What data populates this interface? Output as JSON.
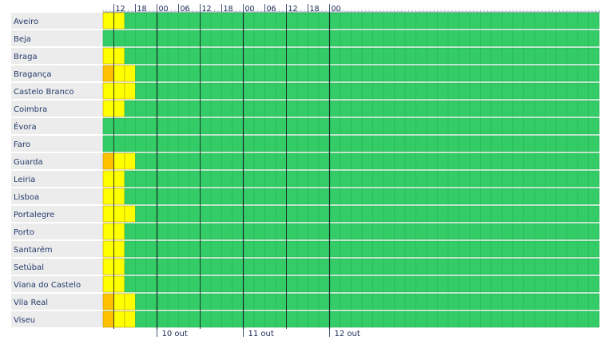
{
  "chart_data": {
    "type": "heatmap",
    "title": "",
    "xlabel": "",
    "ylabel": "",
    "slot_hours": 3,
    "start_time": "09",
    "hour_ticks": [
      "12",
      "18",
      "00",
      "06",
      "12",
      "18",
      "00",
      "06",
      "12",
      "18",
      "00"
    ],
    "day_labels": [
      "10 out",
      "11 out",
      "12 out"
    ],
    "level_colors": {
      "green": "#33cc66",
      "yellow": "#ffff00",
      "orange": "#ffc000"
    },
    "rows": [
      {
        "district": "Aveiro",
        "levels": [
          "yellow",
          "yellow",
          "green"
        ]
      },
      {
        "district": "Beja",
        "levels": [
          "green",
          "green",
          "green"
        ]
      },
      {
        "district": "Braga",
        "levels": [
          "yellow",
          "yellow",
          "green"
        ]
      },
      {
        "district": "Bragança",
        "levels": [
          "orange",
          "yellow",
          "yellow",
          "green"
        ]
      },
      {
        "district": "Castelo Branco",
        "levels": [
          "yellow",
          "yellow",
          "yellow",
          "green"
        ]
      },
      {
        "district": "Coimbra",
        "levels": [
          "yellow",
          "yellow",
          "green"
        ]
      },
      {
        "district": "Évora",
        "levels": [
          "green",
          "green",
          "green"
        ]
      },
      {
        "district": "Faro",
        "levels": [
          "green",
          "green",
          "green"
        ]
      },
      {
        "district": "Guarda",
        "levels": [
          "orange",
          "yellow",
          "yellow",
          "green"
        ]
      },
      {
        "district": "Leiria",
        "levels": [
          "yellow",
          "yellow",
          "green"
        ]
      },
      {
        "district": "Lisboa",
        "levels": [
          "yellow",
          "yellow",
          "green"
        ]
      },
      {
        "district": "Portalegre",
        "levels": [
          "yellow",
          "yellow",
          "yellow",
          "green"
        ]
      },
      {
        "district": "Porto",
        "levels": [
          "yellow",
          "yellow",
          "green"
        ]
      },
      {
        "district": "Santarém",
        "levels": [
          "yellow",
          "yellow",
          "green"
        ]
      },
      {
        "district": "Setúbal",
        "levels": [
          "yellow",
          "yellow",
          "green"
        ]
      },
      {
        "district": "Viana do Castelo",
        "levels": [
          "yellow",
          "yellow",
          "green"
        ]
      },
      {
        "district": "Vila Real",
        "levels": [
          "orange",
          "yellow",
          "yellow",
          "green"
        ]
      },
      {
        "district": "Viseu",
        "levels": [
          "orange",
          "yellow",
          "yellow",
          "green"
        ]
      }
    ]
  }
}
